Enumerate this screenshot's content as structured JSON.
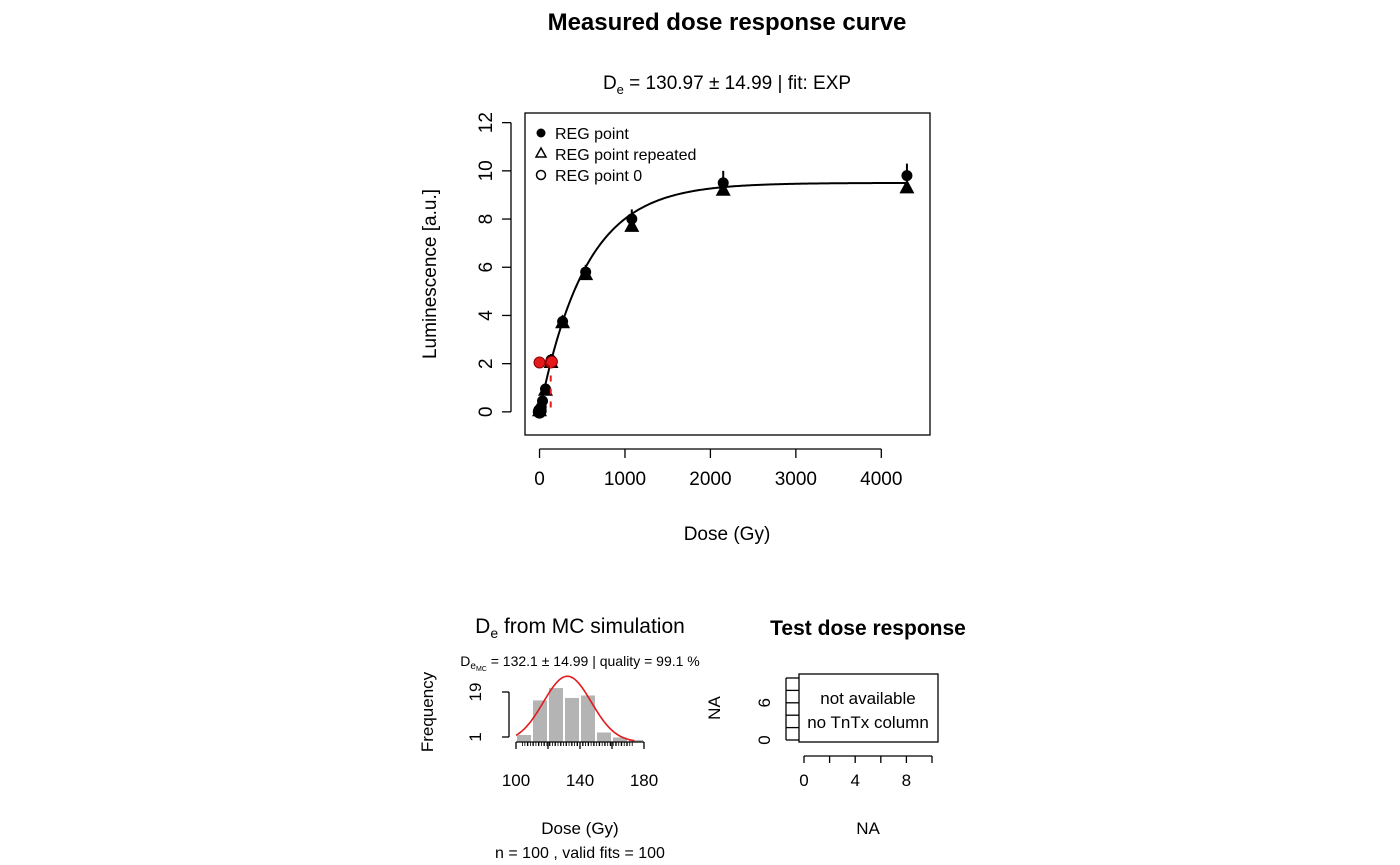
{
  "main_title": "Measured dose response curve",
  "chart_data": [
    {
      "type": "scatter",
      "subtitle": {
        "de_symbol": "D",
        "de_sub": "e",
        "rest": " = 130.97 ± 14.99  | fit:  EXP"
      },
      "xlabel": "Dose (Gy)",
      "ylabel": "Luminescence [a.u.]",
      "xlim": [
        -170,
        4570
      ],
      "ylim": [
        -0.96,
        12.4
      ],
      "x_ticks": [
        0,
        1000,
        2000,
        3000,
        4000
      ],
      "y_ticks": [
        0,
        2,
        4,
        6,
        8,
        10,
        12
      ],
      "legend": {
        "position": "top-left",
        "entries": [
          {
            "label": "REG point",
            "symbol": "filled-circle"
          },
          {
            "label": "REG point repeated",
            "symbol": "triangle"
          },
          {
            "label": "REG point 0",
            "symbol": "open-circle"
          }
        ]
      },
      "fit_curve": {
        "model": "EXP",
        "a": 9.5,
        "D0": 540,
        "c": 0.0
      },
      "series": [
        {
          "name": "REG point",
          "marker": "filled-circle",
          "points": [
            {
              "x": 0,
              "y": 0.0,
              "err": 0.1
            },
            {
              "x": 20,
              "y": 0.2,
              "err": 0.1
            },
            {
              "x": 35,
              "y": 0.45,
              "err": 0.15
            },
            {
              "x": 70,
              "y": 0.95,
              "err": 0.2
            },
            {
              "x": 135,
              "y": 2.15,
              "err": 0.25
            },
            {
              "x": 270,
              "y": 3.75,
              "err": 0.25
            },
            {
              "x": 540,
              "y": 5.8,
              "err": 0.3
            },
            {
              "x": 1080,
              "y": 8.0,
              "err": 0.4
            },
            {
              "x": 2150,
              "y": 9.5,
              "err": 0.5
            },
            {
              "x": 4300,
              "y": 9.8,
              "err": 0.5
            }
          ]
        },
        {
          "name": "REG point repeated",
          "marker": "triangle",
          "points": [
            {
              "x": 0,
              "y": 0.05
            },
            {
              "x": 70,
              "y": 0.9
            },
            {
              "x": 135,
              "y": 2.05
            },
            {
              "x": 270,
              "y": 3.7
            },
            {
              "x": 540,
              "y": 5.7
            },
            {
              "x": 1080,
              "y": 7.7
            },
            {
              "x": 2150,
              "y": 9.2
            },
            {
              "x": 4300,
              "y": 9.3
            }
          ]
        },
        {
          "name": "REG point 0",
          "marker": "open-circle",
          "points": [
            {
              "x": 0,
              "y": 0.0
            },
            {
              "x": 5,
              "y": 0.05
            }
          ]
        },
        {
          "name": "De",
          "marker": "red-point",
          "points": [
            {
              "x": 0,
              "y": 2.05
            },
            {
              "x": 131,
              "y": 2.05
            },
            {
              "x": 145,
              "y": 2.08
            }
          ],
          "de_drop": {
            "x": 131,
            "y_from": 2.05,
            "y_to": 0.0
          }
        }
      ]
    },
    {
      "type": "bar",
      "title": {
        "de_symbol": "D",
        "de_sub": "e",
        "rest": " from MC simulation"
      },
      "subtitle": {
        "de_symbol": "D",
        "de_sub": "e",
        "de_subsub": "MC",
        "rest": " = 132.1 ± 14.99  | quality =  99.1 %"
      },
      "xlabel": "Dose (Gy)",
      "ylabel": "Frequency",
      "x_ticks": [
        100,
        140,
        180
      ],
      "y_ticks": [
        1,
        19
      ],
      "xlim": [
        100,
        180
      ],
      "bins": [
        {
          "from": 100,
          "to": 110,
          "count": 3
        },
        {
          "from": 110,
          "to": 120,
          "count": 17
        },
        {
          "from": 120,
          "to": 130,
          "count": 22
        },
        {
          "from": 130,
          "to": 140,
          "count": 18
        },
        {
          "from": 140,
          "to": 150,
          "count": 19
        },
        {
          "from": 150,
          "to": 160,
          "count": 4
        },
        {
          "from": 160,
          "to": 170,
          "count": 2
        },
        {
          "from": 170,
          "to": 180,
          "count": 1
        }
      ],
      "normal_curve": {
        "mean": 132.1,
        "sd": 14.99,
        "n": 100,
        "binwidth": 10
      },
      "footnote": "n =  100 , valid fits = 100"
    },
    {
      "type": "table",
      "title": "Test dose response",
      "xlabel": "NA",
      "ylabel": "NA",
      "x_ticks": [
        0,
        4,
        8
      ],
      "y_ticks": [
        0,
        6
      ],
      "message_lines": [
        "not available",
        "no TnTx column"
      ]
    }
  ]
}
